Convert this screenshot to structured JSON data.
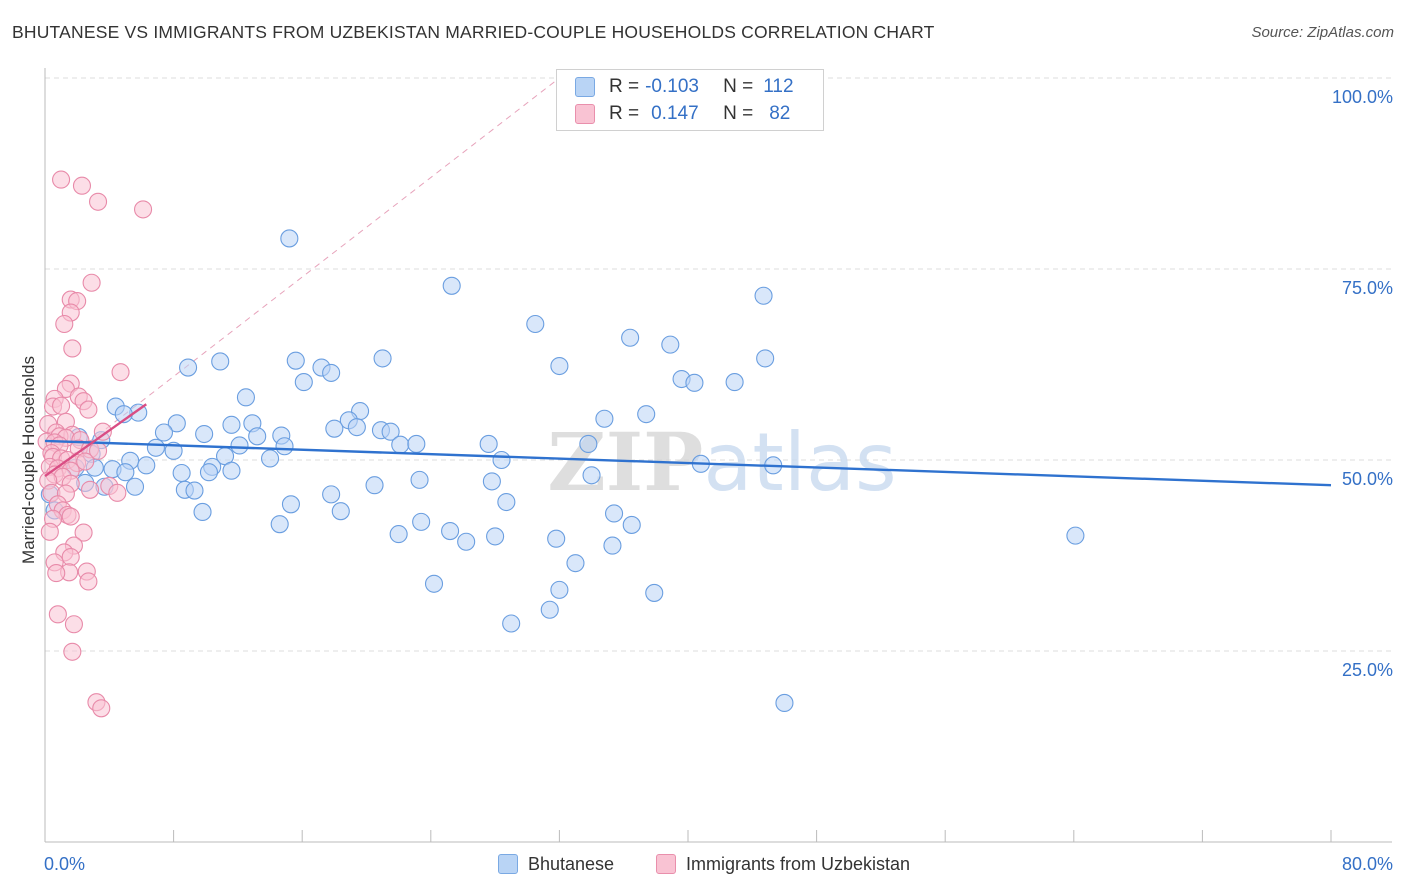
{
  "title": "BHUTANESE VS IMMIGRANTS FROM UZBEKISTAN MARRIED-COUPLE HOUSEHOLDS CORRELATION CHART",
  "source": "Source: ZipAtlas.com",
  "watermark": "ZIPatlas",
  "colors": {
    "blue_fill": "#b9d4f5",
    "blue_stroke": "#6a9ee0",
    "blue_line": "#2f72cf",
    "pink_fill": "#f9c3d3",
    "pink_stroke": "#e88aa9",
    "pink_line": "#d94d84",
    "tick_label": "#3470c6",
    "grid": "#dddddd"
  },
  "stats": {
    "r_label": "R =",
    "n_label": "N =",
    "blue": {
      "r": "-0.103",
      "n": "112"
    },
    "pink": {
      "r": "0.147",
      "n": "82"
    }
  },
  "chart_data": {
    "type": "scatter",
    "ylabel": "Married-couple Households",
    "xlim": [
      0,
      80
    ],
    "ylim": [
      0,
      100
    ],
    "x_tick_labels": [
      "0.0%",
      "80.0%"
    ],
    "y_ticks": [
      {
        "value": 100,
        "label": "100.0%"
      },
      {
        "value": 75,
        "label": "75.0%"
      },
      {
        "value": 50,
        "label": "50.0%"
      },
      {
        "value": 25,
        "label": "25.0%"
      }
    ],
    "grid": "horizontal dashed",
    "legend_position": "bottom-center",
    "series": [
      {
        "name": "Bhutanese",
        "color": "blue",
        "trend": {
          "x": [
            0,
            80
          ],
          "y": [
            52.5,
            46.7
          ]
        },
        "points": [
          [
            15.2,
            79.0
          ],
          [
            25.3,
            72.8
          ],
          [
            44.7,
            71.5
          ],
          [
            30.5,
            67.8
          ],
          [
            36.4,
            66.0
          ],
          [
            38.9,
            65.1
          ],
          [
            21.0,
            63.3
          ],
          [
            15.6,
            63.0
          ],
          [
            44.8,
            63.3
          ],
          [
            10.9,
            62.9
          ],
          [
            8.9,
            62.1
          ],
          [
            17.2,
            62.1
          ],
          [
            32.0,
            62.3
          ],
          [
            17.8,
            61.4
          ],
          [
            39.6,
            60.6
          ],
          [
            40.4,
            60.1
          ],
          [
            42.9,
            60.2
          ],
          [
            16.1,
            60.2
          ],
          [
            12.5,
            58.2
          ],
          [
            4.4,
            57.0
          ],
          [
            5.8,
            56.2
          ],
          [
            4.9,
            56.0
          ],
          [
            19.6,
            56.4
          ],
          [
            18.9,
            55.2
          ],
          [
            34.8,
            55.4
          ],
          [
            37.4,
            56.0
          ],
          [
            8.2,
            54.8
          ],
          [
            11.6,
            54.6
          ],
          [
            12.9,
            54.8
          ],
          [
            18.0,
            54.1
          ],
          [
            19.4,
            54.3
          ],
          [
            20.9,
            53.9
          ],
          [
            21.5,
            53.7
          ],
          [
            7.4,
            53.6
          ],
          [
            13.2,
            53.1
          ],
          [
            14.7,
            53.2
          ],
          [
            2.1,
            53.0
          ],
          [
            3.5,
            52.6
          ],
          [
            9.9,
            53.4
          ],
          [
            27.6,
            52.1
          ],
          [
            33.8,
            52.1
          ],
          [
            22.1,
            52.0
          ],
          [
            23.1,
            52.1
          ],
          [
            14.9,
            51.8
          ],
          [
            6.9,
            51.6
          ],
          [
            12.1,
            51.9
          ],
          [
            8.0,
            51.2
          ],
          [
            2.9,
            50.8
          ],
          [
            11.2,
            50.5
          ],
          [
            5.3,
            49.9
          ],
          [
            6.3,
            49.3
          ],
          [
            10.4,
            49.1
          ],
          [
            14.0,
            50.2
          ],
          [
            28.4,
            50.0
          ],
          [
            40.8,
            49.5
          ],
          [
            45.3,
            49.3
          ],
          [
            1.9,
            49.0
          ],
          [
            3.1,
            49.0
          ],
          [
            4.2,
            48.8
          ],
          [
            5.0,
            48.4
          ],
          [
            8.5,
            48.3
          ],
          [
            10.2,
            48.4
          ],
          [
            11.6,
            48.6
          ],
          [
            23.3,
            47.4
          ],
          [
            27.8,
            47.2
          ],
          [
            34.0,
            48.0
          ],
          [
            20.5,
            46.7
          ],
          [
            2.5,
            47.0
          ],
          [
            3.7,
            46.5
          ],
          [
            5.6,
            46.5
          ],
          [
            8.7,
            46.1
          ],
          [
            9.3,
            46.0
          ],
          [
            0.3,
            45.5
          ],
          [
            17.8,
            45.5
          ],
          [
            28.7,
            44.5
          ],
          [
            15.3,
            44.2
          ],
          [
            9.8,
            43.2
          ],
          [
            18.4,
            43.3
          ],
          [
            35.4,
            43.0
          ],
          [
            0.6,
            43.4
          ],
          [
            14.6,
            41.6
          ],
          [
            23.4,
            41.9
          ],
          [
            36.5,
            41.5
          ],
          [
            25.2,
            40.7
          ],
          [
            22.0,
            40.3
          ],
          [
            28.0,
            40.0
          ],
          [
            31.8,
            39.7
          ],
          [
            26.2,
            39.3
          ],
          [
            35.3,
            38.8
          ],
          [
            64.1,
            40.1
          ],
          [
            33.0,
            36.5
          ],
          [
            24.2,
            33.8
          ],
          [
            32.0,
            33.0
          ],
          [
            37.9,
            32.6
          ],
          [
            31.4,
            30.4
          ],
          [
            29.0,
            28.6
          ],
          [
            46.0,
            18.2
          ]
        ]
      },
      {
        "name": "Immigrants from Uzbekistan",
        "color": "pink",
        "trend": {
          "x": [
            0,
            6.3
          ],
          "y": [
            47.9,
            57.3
          ]
        },
        "points": [
          [
            1.0,
            86.7
          ],
          [
            2.3,
            85.9
          ],
          [
            3.3,
            83.8
          ],
          [
            6.1,
            82.8
          ],
          [
            2.9,
            73.2
          ],
          [
            1.6,
            71.0
          ],
          [
            2.0,
            70.8
          ],
          [
            1.6,
            69.3
          ],
          [
            1.2,
            67.8
          ],
          [
            1.7,
            64.6
          ],
          [
            4.7,
            61.5
          ],
          [
            1.6,
            60.0
          ],
          [
            1.3,
            59.3
          ],
          [
            0.6,
            58.0
          ],
          [
            2.1,
            58.3
          ],
          [
            2.4,
            57.7
          ],
          [
            0.5,
            57.0
          ],
          [
            1.0,
            57.1
          ],
          [
            2.7,
            56.6
          ],
          [
            1.3,
            55.0
          ],
          [
            0.2,
            54.7
          ],
          [
            3.6,
            53.7
          ],
          [
            0.7,
            53.6
          ],
          [
            1.7,
            53.3
          ],
          [
            0.9,
            53.1
          ],
          [
            1.3,
            52.9
          ],
          [
            2.2,
            52.6
          ],
          [
            0.1,
            52.4
          ],
          [
            0.6,
            52.3
          ],
          [
            0.9,
            51.9
          ],
          [
            2.1,
            51.5
          ],
          [
            2.8,
            51.4
          ],
          [
            3.3,
            51.2
          ],
          [
            0.4,
            50.9
          ],
          [
            0.5,
            50.4
          ],
          [
            1.0,
            50.2
          ],
          [
            1.4,
            50.0
          ],
          [
            2.0,
            49.6
          ],
          [
            2.5,
            49.8
          ],
          [
            0.3,
            49.1
          ],
          [
            0.8,
            48.9
          ],
          [
            1.6,
            48.6
          ],
          [
            0.6,
            48.1
          ],
          [
            1.1,
            47.8
          ],
          [
            0.2,
            47.3
          ],
          [
            1.6,
            46.9
          ],
          [
            4.0,
            46.6
          ],
          [
            2.8,
            46.1
          ],
          [
            0.4,
            45.7
          ],
          [
            1.3,
            45.6
          ],
          [
            4.5,
            45.7
          ],
          [
            0.8,
            44.2
          ],
          [
            1.1,
            43.4
          ],
          [
            1.4,
            42.8
          ],
          [
            1.6,
            42.6
          ],
          [
            0.5,
            42.3
          ],
          [
            2.4,
            40.5
          ],
          [
            0.3,
            40.6
          ],
          [
            1.8,
            38.8
          ],
          [
            1.2,
            37.9
          ],
          [
            1.6,
            37.3
          ],
          [
            0.6,
            36.6
          ],
          [
            1.5,
            35.3
          ],
          [
            0.7,
            35.2
          ],
          [
            2.6,
            35.4
          ],
          [
            2.7,
            34.1
          ],
          [
            0.8,
            29.8
          ],
          [
            1.8,
            28.5
          ],
          [
            1.7,
            24.9
          ],
          [
            3.2,
            18.3
          ],
          [
            3.5,
            17.5
          ]
        ]
      }
    ]
  },
  "legend": {
    "blue_label": "Bhutanese",
    "pink_label": "Immigrants from Uzbekistan"
  }
}
